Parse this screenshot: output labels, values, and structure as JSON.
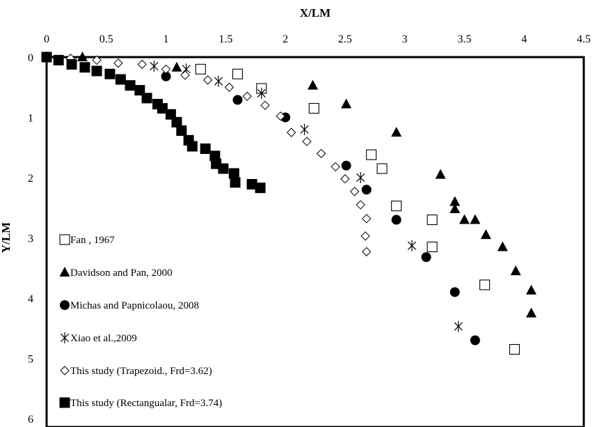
{
  "chart_data": {
    "type": "scatter",
    "xlabel": "X/LM",
    "ylabel": "Y/LM",
    "x_axis_position": "top",
    "y_axis_inverted": true,
    "xlim": [
      0,
      4.5
    ],
    "ylim": [
      0,
      6
    ],
    "xticks": [
      "0",
      "0.5",
      "1",
      "1.5",
      "2",
      "2.5",
      "3",
      "3.5",
      "4",
      "4.5"
    ],
    "yticks": [
      "0",
      "1",
      "2",
      "3",
      "4",
      "5",
      "6"
    ],
    "grid": false,
    "legend_position": "bottom-left inside",
    "series": [
      {
        "name": "Fan , 1967",
        "marker": "open-square",
        "points": [
          [
            1.29,
            0.2
          ],
          [
            1.6,
            0.28
          ],
          [
            1.8,
            0.52
          ],
          [
            2.24,
            0.85
          ],
          [
            2.72,
            1.62
          ],
          [
            2.81,
            1.85
          ],
          [
            2.93,
            2.47
          ],
          [
            3.23,
            2.7
          ],
          [
            3.23,
            3.15
          ],
          [
            3.67,
            3.78
          ],
          [
            3.92,
            4.85
          ]
        ]
      },
      {
        "name": "Davidson and Pan, 2000",
        "marker": "filled-triangle",
        "points": [
          [
            0.3,
            0.0
          ],
          [
            1.09,
            0.17
          ],
          [
            2.23,
            0.47
          ],
          [
            2.51,
            0.78
          ],
          [
            2.93,
            1.25
          ],
          [
            3.3,
            1.95
          ],
          [
            3.42,
            2.4
          ],
          [
            3.42,
            2.52
          ],
          [
            3.5,
            2.7
          ],
          [
            3.59,
            2.7
          ],
          [
            3.68,
            2.95
          ],
          [
            3.82,
            3.15
          ],
          [
            3.93,
            3.55
          ],
          [
            4.06,
            3.87
          ],
          [
            4.06,
            4.25
          ]
        ]
      },
      {
        "name": "Michas and Papnicolaou, 2008",
        "marker": "filled-circle",
        "points": [
          [
            0.0,
            0.0
          ],
          [
            1.0,
            0.32
          ],
          [
            1.6,
            0.71
          ],
          [
            2.0,
            1.0
          ],
          [
            2.51,
            1.8
          ],
          [
            2.68,
            2.2
          ],
          [
            2.93,
            2.7
          ],
          [
            3.18,
            3.32
          ],
          [
            3.42,
            3.9
          ],
          [
            3.59,
            4.7
          ]
        ]
      },
      {
        "name": "Xiao et al.,2009",
        "marker": "asterisk",
        "points": [
          [
            0.0,
            0.0
          ],
          [
            0.9,
            0.15
          ],
          [
            1.17,
            0.2
          ],
          [
            1.44,
            0.4
          ],
          [
            1.8,
            0.6
          ],
          [
            2.16,
            1.2
          ],
          [
            2.63,
            2.0
          ],
          [
            3.06,
            3.13
          ],
          [
            3.45,
            4.47
          ]
        ]
      },
      {
        "name": "This study (Trapezoid., Frd=3.62)",
        "marker": "open-diamond",
        "points": [
          [
            0.0,
            0.0
          ],
          [
            0.2,
            0.02
          ],
          [
            0.42,
            0.05
          ],
          [
            0.6,
            0.1
          ],
          [
            0.8,
            0.12
          ],
          [
            1.0,
            0.2
          ],
          [
            1.16,
            0.3
          ],
          [
            1.35,
            0.38
          ],
          [
            1.53,
            0.5
          ],
          [
            1.68,
            0.65
          ],
          [
            1.83,
            0.8
          ],
          [
            1.96,
            0.98
          ],
          [
            2.05,
            1.25
          ],
          [
            2.18,
            1.4
          ],
          [
            2.3,
            1.6
          ],
          [
            2.42,
            1.82
          ],
          [
            2.5,
            2.02
          ],
          [
            2.58,
            2.23
          ],
          [
            2.63,
            2.45
          ],
          [
            2.68,
            2.68
          ],
          [
            2.67,
            2.97
          ],
          [
            2.68,
            3.23
          ]
        ]
      },
      {
        "name": "This study (Rectangualar, Frd=3.74)",
        "marker": "filled-square",
        "points": [
          [
            0.0,
            0.0
          ],
          [
            0.1,
            0.05
          ],
          [
            0.21,
            0.12
          ],
          [
            0.32,
            0.17
          ],
          [
            0.42,
            0.23
          ],
          [
            0.53,
            0.28
          ],
          [
            0.62,
            0.37
          ],
          [
            0.7,
            0.47
          ],
          [
            0.78,
            0.55
          ],
          [
            0.84,
            0.68
          ],
          [
            0.93,
            0.78
          ],
          [
            0.97,
            0.85
          ],
          [
            1.04,
            0.95
          ],
          [
            1.09,
            1.08
          ],
          [
            1.13,
            1.22
          ],
          [
            1.19,
            1.38
          ],
          [
            1.22,
            1.48
          ],
          [
            1.33,
            1.52
          ],
          [
            1.41,
            1.64
          ],
          [
            1.42,
            1.77
          ],
          [
            1.48,
            1.85
          ],
          [
            1.57,
            1.93
          ],
          [
            1.58,
            2.08
          ],
          [
            1.72,
            2.11
          ],
          [
            1.79,
            2.17
          ]
        ]
      }
    ]
  }
}
